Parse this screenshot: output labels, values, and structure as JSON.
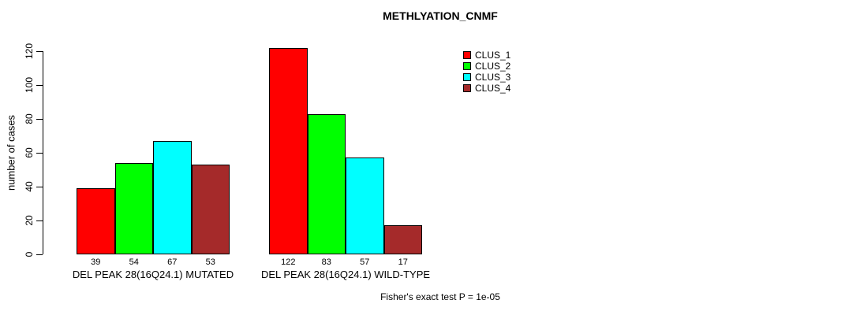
{
  "chart_data": {
    "type": "bar",
    "title": "METHLYATION_CNMF",
    "ylabel": "number of cases",
    "xlabel": "",
    "ylim": [
      0,
      120
    ],
    "yticks": [
      0,
      20,
      40,
      60,
      80,
      100,
      120
    ],
    "grid": false,
    "legend_position": "top-right",
    "groups": [
      {
        "label": "DEL PEAK 28(16Q24.1) MUTATED",
        "values": [
          39,
          54,
          67,
          53
        ]
      },
      {
        "label": "DEL PEAK 28(16Q24.1) WILD-TYPE",
        "values": [
          122,
          83,
          57,
          17
        ]
      }
    ],
    "series": [
      {
        "name": "CLUS_1",
        "color": "#FF0000"
      },
      {
        "name": "CLUS_2",
        "color": "#00FF00"
      },
      {
        "name": "CLUS_3",
        "color": "#00FFFF"
      },
      {
        "name": "CLUS_4",
        "color": "#A52A2A"
      }
    ],
    "annotation": "Fisher's exact test P = 1e-05"
  },
  "colors": {
    "background": "#FFFFFF",
    "axis": "#000000",
    "bar_border": "#000000",
    "text": "#000000"
  }
}
